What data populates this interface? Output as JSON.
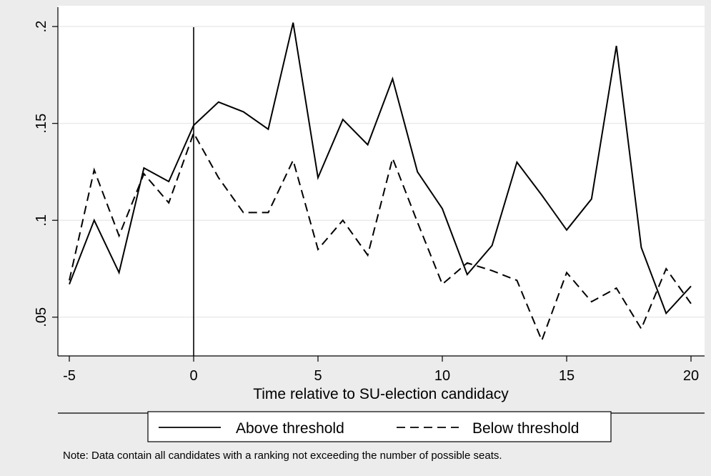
{
  "chart_data": {
    "type": "line",
    "xlabel": "Time relative to SU-election candidacy",
    "ylabel": "",
    "x": [
      -5,
      -4,
      -3,
      -2,
      -1,
      0,
      1,
      2,
      3,
      4,
      5,
      6,
      7,
      8,
      9,
      10,
      11,
      12,
      13,
      14,
      15,
      16,
      17,
      18,
      19,
      20
    ],
    "xlim": [
      -5,
      20
    ],
    "ylim": [
      0.03,
      0.21
    ],
    "x_ticks": [
      -5,
      0,
      5,
      10,
      15,
      20
    ],
    "x_tick_labels": [
      "-5",
      "0",
      "5",
      "10",
      "15",
      "20"
    ],
    "y_ticks": [
      0.05,
      0.1,
      0.15,
      0.2
    ],
    "y_tick_labels": [
      ".05",
      ".1",
      ".15",
      ".2"
    ],
    "grid": true,
    "vertical_reference_line": 0,
    "legend_position": "bottom",
    "series": [
      {
        "name": "Above threshold",
        "line_style": "solid",
        "values": [
          0.067,
          0.1,
          0.073,
          0.127,
          0.12,
          0.149,
          0.161,
          0.156,
          0.147,
          0.202,
          0.122,
          0.152,
          0.139,
          0.173,
          0.125,
          0.106,
          0.072,
          0.087,
          0.13,
          0.113,
          0.095,
          0.111,
          0.19,
          0.086,
          0.052,
          0.066
        ]
      },
      {
        "name": "Below threshold",
        "line_style": "dashed",
        "values": [
          0.069,
          0.126,
          0.092,
          0.124,
          0.109,
          0.145,
          0.122,
          0.104,
          0.104,
          0.131,
          0.085,
          0.1,
          0.082,
          0.132,
          0.099,
          0.067,
          0.078,
          0.074,
          0.069,
          0.038,
          0.073,
          0.058,
          0.065,
          0.044,
          0.075,
          0.057
        ]
      }
    ],
    "note": "Note: Data contain all candidates with a ranking not exceeding the number of possible seats.",
    "colors": {
      "background": "#ececec",
      "plot_background": "#ffffff",
      "grid": "#e6e6e6",
      "line": "#000000"
    }
  }
}
